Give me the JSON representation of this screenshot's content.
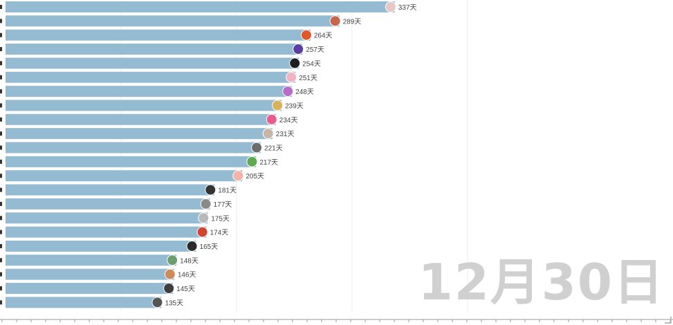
{
  "date_label": "12月30日",
  "chart_data": {
    "type": "bar",
    "orientation": "horizontal",
    "title": "",
    "xlabel": "",
    "ylabel": "",
    "xlim": [
      0,
      400
    ],
    "grid": true,
    "value_suffix": "天",
    "bar_color": "#95bbd2",
    "values": [
      337,
      289,
      264,
      257,
      254,
      251,
      248,
      239,
      234,
      231,
      221,
      217,
      205,
      181,
      177,
      175,
      174,
      165,
      148,
      146,
      145,
      135
    ],
    "value_labels": [
      "337天",
      "289天",
      "264天",
      "257天",
      "254天",
      "251天",
      "248天",
      "239天",
      "234天",
      "231天",
      "221天",
      "217天",
      "205天",
      "181天",
      "177天",
      "175天",
      "174天",
      "165天",
      "148天",
      "146天",
      "145天",
      "135天"
    ],
    "avatar_colors": [
      "#e8c7c7",
      "#c9654a",
      "#e0582a",
      "#5a3fa0",
      "#1e1e1e",
      "#f1b4c4",
      "#b86bc9",
      "#d8b35a",
      "#e75b8e",
      "#c8b5a6",
      "#6d6d6d",
      "#5faa4e",
      "#f3b3a7",
      "#333333",
      "#8a8a8a",
      "#b9b9b9",
      "#d0452e",
      "#2b2b2b",
      "#6e9e6e",
      "#c98c5a",
      "#3e3e3e",
      "#555555"
    ]
  }
}
